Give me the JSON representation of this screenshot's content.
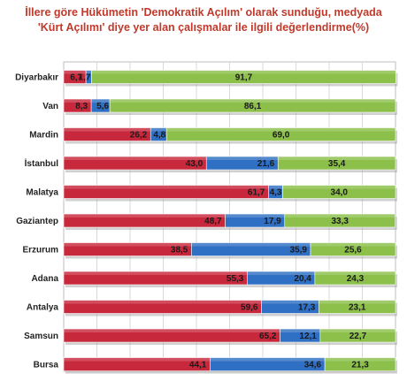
{
  "chart_data": {
    "type": "bar",
    "title_lines": [
      "İllere göre Hükümetin 'Demokratik Açılım' olarak sunduğu, medyada",
      "'Kürt Açılımı' diye yer alan çalışmalar ile ilgili değerlendirme(%)"
    ],
    "xlabel": "",
    "ylabel": "",
    "orientation": "horizontal",
    "stacked": true,
    "xlim": [
      0,
      100
    ],
    "categories": [
      "Diyarbakır",
      "Van",
      "Mardin",
      "İstanbul",
      "Malatya",
      "Gaziantep",
      "Erzurum",
      "Adana",
      "Antalya",
      "Samsun",
      "Bursa"
    ],
    "series": [
      {
        "color": "#c8283c",
        "values": [
          6.7,
          8.3,
          26.2,
          43.0,
          61.7,
          48.7,
          38.5,
          55.3,
          59.6,
          65.2,
          44.1
        ],
        "labels": [
          "6,7",
          "8,3",
          "26,2",
          "43,0",
          "61,7",
          "48,7",
          "38,5",
          "55,3",
          "59,6",
          "65,2",
          "44,1"
        ]
      },
      {
        "color": "#2f6fc4",
        "values": [
          1.7,
          5.6,
          4.8,
          21.6,
          4.3,
          17.9,
          35.9,
          20.4,
          17.3,
          12.1,
          34.6
        ],
        "labels": [
          "1,7",
          "5,6",
          "4,8",
          "21,6",
          "4,3",
          "17,9",
          "35,9",
          "20,4",
          "17,3",
          "12,1",
          "34,6"
        ]
      },
      {
        "color": "#8cc04a",
        "values": [
          91.7,
          86.1,
          69.0,
          35.4,
          34.0,
          33.3,
          25.6,
          24.3,
          23.1,
          22.7,
          21.3
        ],
        "labels": [
          "91,7",
          "86,1",
          "69,0",
          "35,4",
          "34,0",
          "33,3",
          "25,6",
          "24,3",
          "23,1",
          "22,7",
          "21,3"
        ]
      }
    ],
    "grid": true,
    "legend": "none"
  }
}
